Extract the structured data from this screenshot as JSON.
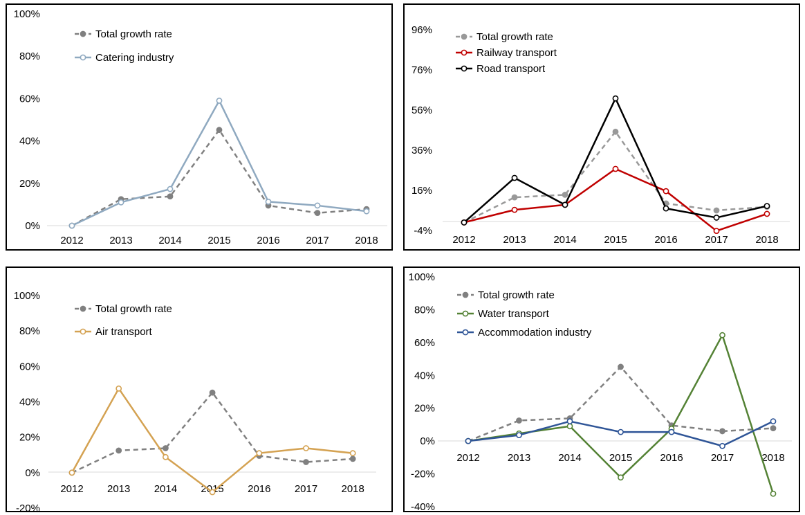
{
  "chart_data": [
    {
      "type": "line",
      "x": [
        "2012",
        "2013",
        "2014",
        "2015",
        "2016",
        "2017",
        "2018"
      ],
      "ylim": [
        0,
        100
      ],
      "yticks": [
        "0%",
        "20%",
        "40%",
        "60%",
        "80%",
        "100%"
      ],
      "legend_position": "top-left",
      "grid": false,
      "series": [
        {
          "name": "Total growth rate",
          "color": "#808080",
          "dashed": true,
          "marker": "filled",
          "values": [
            0,
            12.5,
            13.8,
            45.2,
            9.5,
            6.0,
            7.8
          ]
        },
        {
          "name": "Catering industry",
          "color": "#8FA9C0",
          "dashed": false,
          "marker": "hollow",
          "values": [
            0,
            11.0,
            17.3,
            59.0,
            11.3,
            9.5,
            6.8
          ]
        }
      ]
    },
    {
      "type": "line",
      "x": [
        "2012",
        "2013",
        "2014",
        "2015",
        "2016",
        "2017",
        "2018"
      ],
      "ylim": [
        -4,
        96
      ],
      "yticks": [
        "-4%",
        "16%",
        "36%",
        "56%",
        "76%",
        "96%"
      ],
      "legend_position": "top-left",
      "grid": false,
      "series": [
        {
          "name": "Total growth rate",
          "color": "#999999",
          "dashed": true,
          "marker": "filled",
          "values": [
            0,
            12.5,
            13.8,
            45.2,
            9.5,
            6.0,
            7.8
          ]
        },
        {
          "name": "Railway transport",
          "color": "#C00000",
          "dashed": false,
          "marker": "hollow",
          "values": [
            0,
            6.3,
            8.8,
            26.7,
            15.6,
            -4.2,
            4.3
          ]
        },
        {
          "name": "Road transport",
          "color": "#000000",
          "dashed": false,
          "marker": "hollow",
          "values": [
            0,
            22.2,
            8.8,
            61.8,
            7.0,
            2.4,
            8.2
          ]
        }
      ]
    },
    {
      "type": "line",
      "x": [
        "2012",
        "2013",
        "2014",
        "2015",
        "2016",
        "2017",
        "2018"
      ],
      "ylim": [
        -20,
        100
      ],
      "yticks": [
        "-20%",
        "0%",
        "20%",
        "40%",
        "60%",
        "80%",
        "100%"
      ],
      "legend_position": "top-left",
      "grid": false,
      "series": [
        {
          "name": "Total growth rate",
          "color": "#808080",
          "dashed": true,
          "marker": "filled",
          "values": [
            0,
            12.5,
            13.8,
            45.2,
            9.5,
            6.0,
            7.8
          ]
        },
        {
          "name": "Air transport",
          "color": "#D4A252",
          "dashed": false,
          "marker": "hollow",
          "values": [
            0,
            47.5,
            8.8,
            -11.0,
            11.0,
            13.8,
            11.0
          ]
        }
      ]
    },
    {
      "type": "line",
      "x": [
        "2012",
        "2013",
        "2014",
        "2015",
        "2016",
        "2017",
        "2018"
      ],
      "ylim": [
        -40,
        100
      ],
      "yticks": [
        "-40%",
        "-20%",
        "0%",
        "20%",
        "40%",
        "60%",
        "80%",
        "100%"
      ],
      "legend_position": "top-left",
      "grid": false,
      "series": [
        {
          "name": "Total growth rate",
          "color": "#808080",
          "dashed": true,
          "marker": "filled",
          "values": [
            0,
            12.5,
            13.8,
            45.2,
            9.5,
            6.0,
            7.8
          ]
        },
        {
          "name": "Water transport",
          "color": "#548235",
          "dashed": false,
          "marker": "hollow",
          "values": [
            0,
            4.6,
            9.0,
            -22.2,
            7.5,
            64.5,
            -32.1
          ]
        },
        {
          "name": "Accommodation industry",
          "color": "#2F5597",
          "dashed": false,
          "marker": "hollow",
          "values": [
            0,
            3.6,
            12.0,
            5.5,
            5.5,
            -3.0,
            12.0
          ]
        }
      ]
    }
  ]
}
